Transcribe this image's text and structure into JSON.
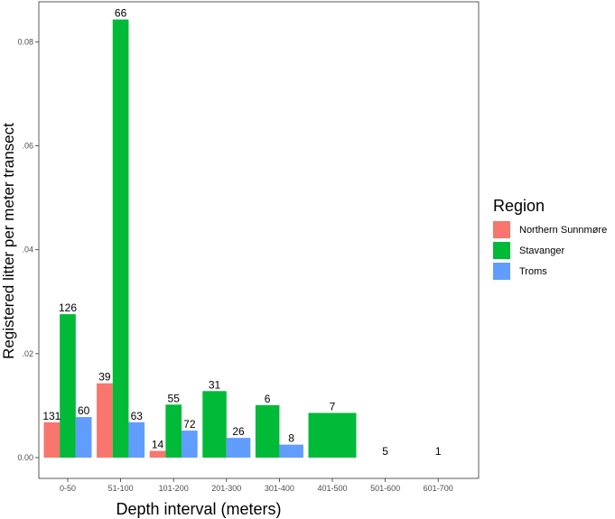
{
  "chart_data": {
    "type": "bar",
    "xlabel": "Depth interval (meters)",
    "ylabel": "Registered litter per meter transect",
    "ylim": [
      0,
      0.0877
    ],
    "yticks": [
      0,
      0.02,
      0.04,
      0.06,
      0.08
    ],
    "ytick_labels": [
      "0.00",
      ".02",
      ".04",
      ".06",
      "0.08"
    ],
    "categories": [
      "0-50",
      "51-100",
      "101-200",
      "201-300",
      "301-400",
      "401-500",
      "501-600",
      "601-700"
    ],
    "grid": false,
    "legend": {
      "title": "Region",
      "placement": "right"
    },
    "series": [
      {
        "name": "Northern Sunnmøre",
        "color": "#F8766D",
        "values": [
          0.0068,
          0.0143,
          0.0013,
          null,
          null,
          null,
          null,
          null
        ],
        "labels": [
          "131",
          "39",
          "14",
          "",
          "",
          "",
          "",
          ""
        ]
      },
      {
        "name": "Stavanger",
        "color": "#00BA38",
        "values": [
          0.0276,
          0.0843,
          0.0102,
          0.0128,
          0.0101,
          0.0086,
          null,
          null
        ],
        "labels": [
          "126",
          "66",
          "55",
          "31",
          "6",
          "7",
          "5",
          "1"
        ]
      },
      {
        "name": "Troms",
        "color": "#619CFF",
        "values": [
          0.0078,
          0.0068,
          0.0052,
          0.0038,
          0.0025,
          null,
          null,
          null
        ],
        "labels": [
          "60",
          "63",
          "72",
          "26",
          "8",
          "",
          "",
          ""
        ]
      }
    ]
  }
}
